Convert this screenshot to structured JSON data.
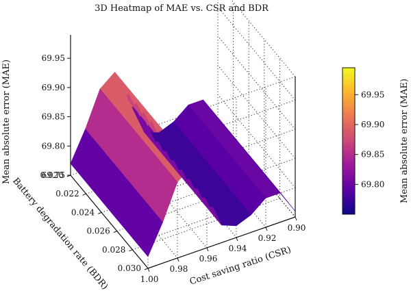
{
  "chart_data": {
    "type": "surface",
    "title": "3D Heatmap of MAE vs. CSR and BDR",
    "xlabel": "Cost saving ratio (CSR)",
    "ylabel": "Battery degradation rate (BDR)",
    "zlabel": "Mean absolute error (MAE)",
    "colorbar_label": "Mean absolute error (MAE)",
    "colormap": "plasma",
    "colormap_stops": [
      "#0d0887",
      "#5c01a6",
      "#9c179e",
      "#cc4778",
      "#ed7953",
      "#fdb42f",
      "#f0f921"
    ],
    "xlim": [
      0.9,
      1.0
    ],
    "ylim": [
      0.02,
      0.03
    ],
    "zlim": [
      69.75,
      69.99
    ],
    "x_ticks": [
      0.9,
      0.92,
      0.94,
      0.96,
      0.98,
      1.0
    ],
    "x_tick_labels": [
      "0.90",
      "0.92",
      "0.94",
      "0.96",
      "0.98",
      "1.00"
    ],
    "y_ticks": [
      0.02,
      0.022,
      0.024,
      0.026,
      0.028,
      0.03
    ],
    "y_tick_labels": [
      "0.020",
      "0.022",
      "0.024",
      "0.026",
      "0.028",
      "0.030"
    ],
    "z_ticks": [
      69.75,
      69.8,
      69.85,
      69.9,
      69.95
    ],
    "z_tick_labels": [
      "69.75",
      "69.80",
      "69.85",
      "69.90",
      "69.95"
    ],
    "colorbar_ticks": [
      69.8,
      69.85,
      69.9,
      69.95
    ],
    "colorbar_tick_labels": [
      "69.80",
      "69.85",
      "69.90",
      "69.95"
    ],
    "colorbar_range": [
      69.75,
      69.995
    ],
    "surface": {
      "x": [
        1.0,
        0.99,
        0.98,
        0.97,
        0.96,
        0.95,
        0.94,
        0.93,
        0.92,
        0.91,
        0.9
      ],
      "y": [
        0.02,
        0.021,
        0.022,
        0.023,
        0.024,
        0.025,
        0.026,
        0.027,
        0.028,
        0.029,
        0.03
      ],
      "z_rows_by_y": [
        [
          69.77,
          69.82,
          69.88,
          69.9,
          69.84,
          69.78,
          69.77,
          69.78,
          69.8,
          69.8,
          69.76
        ],
        [
          69.77,
          69.82,
          69.88,
          69.9,
          69.84,
          69.78,
          69.77,
          69.78,
          69.8,
          69.8,
          69.76
        ],
        [
          69.77,
          69.82,
          69.88,
          69.9,
          69.84,
          69.78,
          69.77,
          69.78,
          69.8,
          69.8,
          69.76
        ],
        [
          69.77,
          69.82,
          69.88,
          69.9,
          69.84,
          69.78,
          69.77,
          69.78,
          69.8,
          69.8,
          69.76
        ],
        [
          69.77,
          69.82,
          69.88,
          69.9,
          69.84,
          69.78,
          69.77,
          69.78,
          69.8,
          69.8,
          69.76
        ],
        [
          69.77,
          69.82,
          69.88,
          69.9,
          69.84,
          69.78,
          69.77,
          69.78,
          69.8,
          69.8,
          69.76
        ],
        [
          69.77,
          69.82,
          69.88,
          69.9,
          69.84,
          69.78,
          69.77,
          69.78,
          69.8,
          69.8,
          69.76
        ],
        [
          69.77,
          69.82,
          69.88,
          69.9,
          69.84,
          69.78,
          69.77,
          69.78,
          69.8,
          69.8,
          69.76
        ],
        [
          69.77,
          69.82,
          69.88,
          69.9,
          69.84,
          69.78,
          69.77,
          69.78,
          69.8,
          69.8,
          69.76
        ],
        [
          69.77,
          69.82,
          69.88,
          69.9,
          69.84,
          69.78,
          69.77,
          69.78,
          69.8,
          69.8,
          69.76
        ],
        [
          69.77,
          69.82,
          69.88,
          69.9,
          69.84,
          69.78,
          69.77,
          69.78,
          69.8,
          69.8,
          69.76
        ]
      ]
    },
    "grid": true
  }
}
